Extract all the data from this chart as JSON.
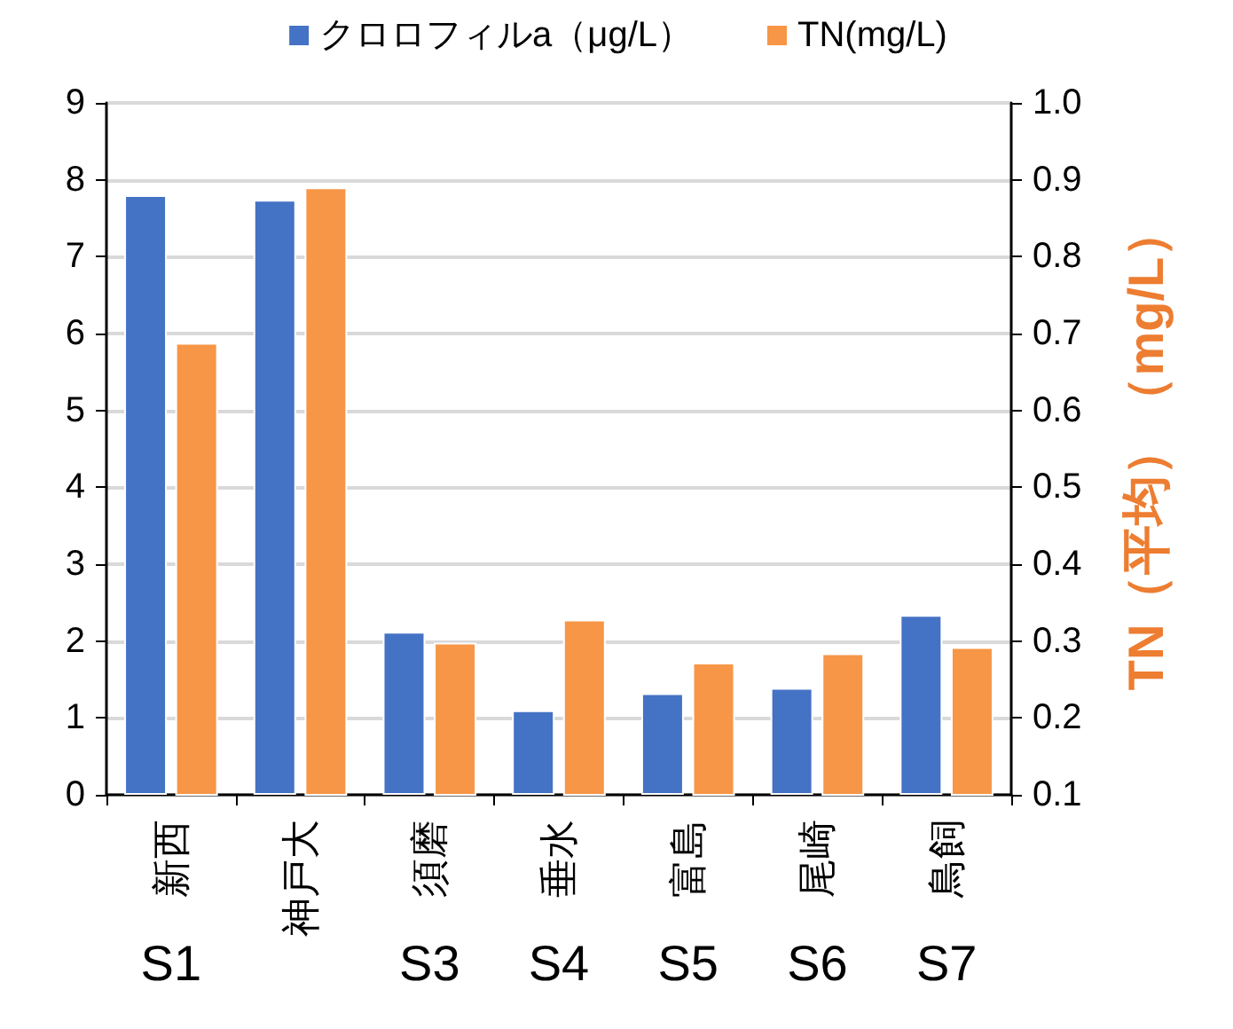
{
  "chart_data": {
    "type": "bar",
    "categories": [
      "新西",
      "神戸大",
      "須磨",
      "垂水",
      "富島",
      "尾崎",
      "鳥飼"
    ],
    "series": [
      {
        "name": "クロロフィルa（μg/L）",
        "color": "#4472c4",
        "values": [
          7.8,
          7.74,
          2.12,
          1.1,
          1.32,
          1.39,
          2.34
        ]
      },
      {
        "name": "TN(mg/L)",
        "color": "#f79646",
        "axis": "y2",
        "values": [
          0.688,
          0.89,
          0.298,
          0.328,
          0.272,
          0.284,
          0.292
        ]
      }
    ],
    "ylim": [
      0,
      9
    ],
    "yticks": [
      0,
      1,
      2,
      3,
      4,
      5,
      6,
      7,
      8,
      9
    ],
    "y2lim": [
      0.1,
      1.0
    ],
    "y2ticks": [
      0.1,
      0.2,
      0.3,
      0.4,
      0.5,
      0.6,
      0.7,
      0.8,
      0.9,
      {
        "value": 1.0,
        "label": "1.0"
      }
    ],
    "y2label": "TN（平均）（mg/L）",
    "annotations": [
      "S1",
      "S3",
      "S4",
      "S5",
      "S6",
      "S7"
    ],
    "grid": "y",
    "legend": "top"
  }
}
